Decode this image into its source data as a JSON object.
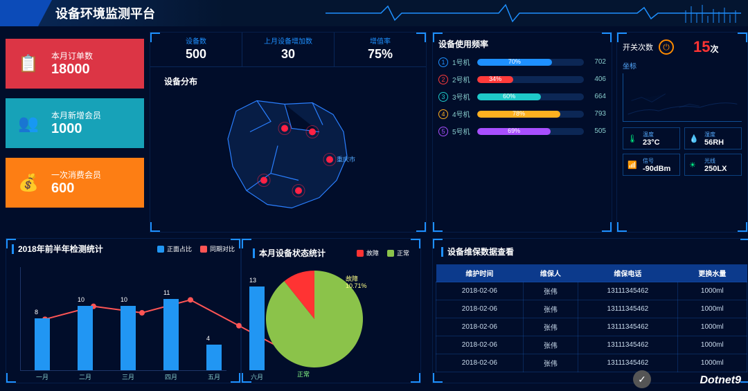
{
  "header": {
    "title": "设备环境监测平台"
  },
  "statCards": [
    {
      "label": "本月订单数",
      "value": "18000",
      "color": "red",
      "icon": "clipboard"
    },
    {
      "label": "本月新增会员",
      "value": "1000",
      "color": "teal",
      "icon": "users"
    },
    {
      "label": "一次消费会员",
      "value": "600",
      "color": "orange",
      "icon": "money"
    }
  ],
  "kpis": [
    {
      "label": "设备数",
      "value": "500"
    },
    {
      "label": "上月设备增加数",
      "value": "30"
    },
    {
      "label": "增值率",
      "value": "75%"
    }
  ],
  "map": {
    "title": "设备分布"
  },
  "usage": {
    "title": "设备使用频率",
    "items": [
      {
        "n": "1",
        "name": "1号机",
        "pct": 70,
        "val": "702",
        "color": "#1e90ff"
      },
      {
        "n": "2",
        "name": "2号机",
        "pct": 34,
        "val": "406",
        "color": "#ff3b3b"
      },
      {
        "n": "3",
        "name": "3号机",
        "pct": 60,
        "val": "664",
        "color": "#1ec9c9"
      },
      {
        "n": "4",
        "name": "4号机",
        "pct": 78,
        "val": "793",
        "color": "#ffb020"
      },
      {
        "n": "5",
        "name": "5号机",
        "pct": 69,
        "val": "505",
        "color": "#a84fff"
      }
    ]
  },
  "switch": {
    "label": "开关次数",
    "count": "15",
    "unit": "次",
    "coord": "坐标"
  },
  "env": [
    {
      "label": "温度",
      "value": "23°C",
      "icon": "🌡"
    },
    {
      "label": "湿度",
      "value": "56RH",
      "icon": "💧"
    },
    {
      "label": "信号",
      "value": "-90dBm",
      "icon": "📶"
    },
    {
      "label": "光线",
      "value": "250LX",
      "icon": "☀"
    }
  ],
  "barChart": {
    "title": "2018年前半年检测统计",
    "legend": [
      {
        "name": "正面占比",
        "color": "#2196f3"
      },
      {
        "name": "同期对比",
        "color": "#ff5555"
      }
    ],
    "maxY": 15,
    "bars": [
      {
        "x": "一月",
        "v": 8
      },
      {
        "x": "二月",
        "v": 10
      },
      {
        "x": "三月",
        "v": 10
      },
      {
        "x": "四月",
        "v": 11
      },
      {
        "x": "五月",
        "v": 4
      },
      {
        "x": "六月",
        "v": 13
      }
    ],
    "line": [
      8,
      10,
      9,
      11,
      7,
      3
    ],
    "barColor": "#2196f3",
    "lineColor": "#ff5555"
  },
  "pie": {
    "title": "本月设备状态统计",
    "legend": [
      {
        "name": "故障",
        "color": "#ff3333"
      },
      {
        "name": "正常",
        "color": "#8bc34a"
      }
    ],
    "slices": [
      {
        "name": "正常",
        "pct": 89.29,
        "color": "#8bc34a"
      },
      {
        "name": "故障",
        "pct": 10.71,
        "color": "#ff3333"
      }
    ]
  },
  "table": {
    "title": "设备维保数据查看",
    "cols": [
      "维护时间",
      "维保人",
      "维保电话",
      "更换水量"
    ],
    "rows": [
      [
        "2018-02-06",
        "张伟",
        "13111345462",
        "1000ml"
      ],
      [
        "2018-02-06",
        "张伟",
        "13111345462",
        "1000ml"
      ],
      [
        "2018-02-06",
        "张伟",
        "13111345462",
        "1000ml"
      ],
      [
        "2018-02-06",
        "张伟",
        "13111345462",
        "1000ml"
      ],
      [
        "2018-02-06",
        "张伟",
        "13111345462",
        "1000ml"
      ]
    ]
  },
  "watermark": "Dotnet9"
}
